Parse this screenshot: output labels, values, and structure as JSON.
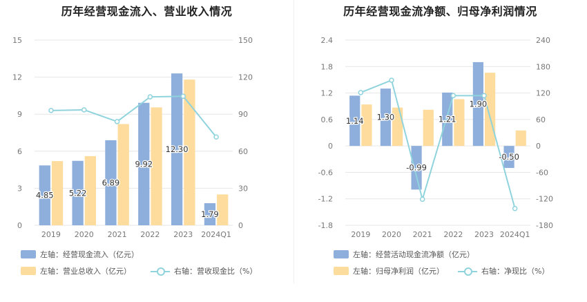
{
  "chart_data": [
    {
      "type": "bar",
      "title": "历年经营现金流入、营业收入情况",
      "categories": [
        "2019",
        "2020",
        "2021",
        "2022",
        "2023",
        "2024Q1"
      ],
      "left_axis": {
        "min": 0,
        "max": 15,
        "ticks": [
          "0",
          "3",
          "6",
          "9",
          "12",
          "15"
        ]
      },
      "right_axis": {
        "min": 0,
        "max": 150,
        "ticks": [
          "0",
          "30",
          "60",
          "90",
          "120",
          "150"
        ]
      },
      "series": [
        {
          "name": "左轴：经营现金流入（亿元）",
          "kind": "bar",
          "axis": "left",
          "color": "#8eaedb",
          "values": [
            4.85,
            5.22,
            6.89,
            9.92,
            12.3,
            1.79
          ],
          "labels": [
            "4.85",
            "5.22",
            "6.89",
            "9.92",
            "12.30",
            "1.79"
          ]
        },
        {
          "name": "左轴：营业总收入（亿元）",
          "kind": "bar",
          "axis": "left",
          "color": "#fddc9d",
          "values": [
            5.2,
            5.6,
            8.2,
            9.55,
            11.8,
            2.5
          ]
        },
        {
          "name": "右轴：营收现金比（%）",
          "kind": "line",
          "axis": "right",
          "color": "#8fd3dd",
          "values": [
            93.0,
            93.5,
            84.0,
            104.0,
            104.5,
            71.5
          ]
        }
      ],
      "grid": true,
      "legend": "bottom"
    },
    {
      "type": "bar",
      "title": "历年经营现金流净额、归母净利润情况",
      "categories": [
        "2019",
        "2020",
        "2021",
        "2022",
        "2023",
        "2024Q1"
      ],
      "left_axis": {
        "min": -1.8,
        "max": 2.4,
        "ticks": [
          "-1.8",
          "-1.2",
          "-0.6",
          "0",
          "0.6",
          "1.2",
          "1.8",
          "2.4"
        ]
      },
      "right_axis": {
        "min": -180,
        "max": 240,
        "ticks": [
          "-180",
          "-120",
          "-60",
          "0",
          "60",
          "120",
          "180",
          "240"
        ]
      },
      "series": [
        {
          "name": "左轴：经营活动现金流净额（亿元）",
          "kind": "bar",
          "axis": "left",
          "color": "#8eaedb",
          "values": [
            1.14,
            1.3,
            -0.99,
            1.21,
            1.9,
            -0.5
          ],
          "labels": [
            "1.14",
            "1.30",
            "-0.99",
            "1.21",
            "1.90",
            "-0.50"
          ]
        },
        {
          "name": "左轴：归母净利润（亿元）",
          "kind": "bar",
          "axis": "left",
          "color": "#fddc9d",
          "values": [
            0.94,
            0.87,
            0.82,
            1.06,
            1.66,
            0.35
          ]
        },
        {
          "name": "右轴：净现比（%）",
          "kind": "line",
          "axis": "right",
          "color": "#8fd3dd",
          "values": [
            121,
            149,
            -121,
            114,
            114,
            -142
          ]
        }
      ],
      "grid": true,
      "legend": "bottom"
    }
  ]
}
